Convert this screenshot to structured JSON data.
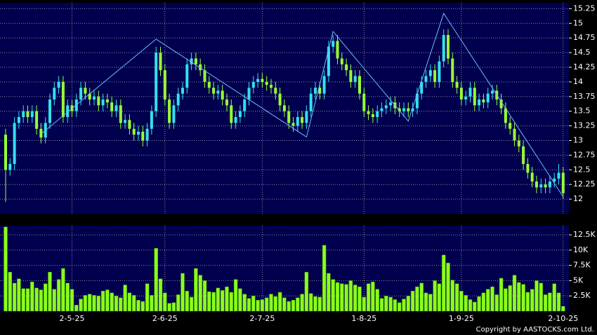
{
  "chart_data": [
    {
      "type": "candlestick",
      "categories": [
        null,
        null,
        null,
        null,
        null,
        null,
        null,
        null,
        null,
        null,
        null,
        null,
        null,
        null,
        null,
        "2-5-25",
        null,
        null,
        null,
        null,
        null,
        null,
        null,
        null,
        null,
        null,
        null,
        null,
        null,
        null,
        null,
        null,
        null,
        null,
        null,
        null,
        "2-6-25",
        null,
        null,
        null,
        null,
        null,
        null,
        null,
        null,
        null,
        null,
        null,
        null,
        null,
        null,
        null,
        null,
        null,
        null,
        null,
        null,
        null,
        "2-7-25",
        null,
        null,
        null,
        null,
        null,
        null,
        null,
        null,
        null,
        null,
        null,
        null,
        null,
        null,
        null,
        null,
        null,
        null,
        null,
        null,
        null,
        null,
        "1-8-25",
        null,
        null,
        null,
        null,
        null,
        null,
        null,
        null,
        null,
        null,
        null,
        null,
        null,
        null,
        null,
        null,
        null,
        null,
        null,
        null,
        null,
        "1-9-25",
        null,
        null,
        null,
        null,
        null,
        null,
        null,
        null,
        null,
        null,
        null,
        null,
        null,
        null,
        null,
        null,
        null,
        null,
        null,
        null,
        null,
        null,
        "2-10-25"
      ],
      "open": [
        13.1,
        12.5,
        12.6,
        13.3,
        13.4,
        13.5,
        13.4,
        13.5,
        13.2,
        13.05,
        13.3,
        13.7,
        13.9,
        14.0,
        13.4,
        13.6,
        13.5,
        13.7,
        13.9,
        13.8,
        13.7,
        13.75,
        13.6,
        13.7,
        13.65,
        13.5,
        13.6,
        13.3,
        13.35,
        13.2,
        13.1,
        13.15,
        13.0,
        13.2,
        13.5,
        14.5,
        14.2,
        13.7,
        13.3,
        13.6,
        13.8,
        13.9,
        14.3,
        14.4,
        14.3,
        14.2,
        14.0,
        13.9,
        13.8,
        13.85,
        13.7,
        13.6,
        13.3,
        13.4,
        13.5,
        13.7,
        13.9,
        14.0,
        14.05,
        14.0,
        13.95,
        13.9,
        13.8,
        13.6,
        13.5,
        13.3,
        13.25,
        13.4,
        13.3,
        13.5,
        13.8,
        13.9,
        13.8,
        14.1,
        14.6,
        14.7,
        14.4,
        14.3,
        14.2,
        14.0,
        14.1,
        13.8,
        13.5,
        13.45,
        13.4,
        13.5,
        13.55,
        13.6,
        13.65,
        13.55,
        13.5,
        13.55,
        13.5,
        13.55,
        13.8,
        14.0,
        14.1,
        14.2,
        14.0,
        14.35,
        14.8,
        14.4,
        14.0,
        13.9,
        13.7,
        13.75,
        13.9,
        13.6,
        13.7,
        13.65,
        13.8,
        13.85,
        13.7,
        13.55,
        13.3,
        13.2,
        13.0,
        12.9,
        12.6,
        12.45,
        12.3,
        12.2,
        12.25,
        12.2,
        12.3,
        12.35,
        12.45
      ],
      "high": [
        13.2,
        12.7,
        13.4,
        13.5,
        13.6,
        13.6,
        13.6,
        13.6,
        13.3,
        13.4,
        13.8,
        14.0,
        14.1,
        14.1,
        13.7,
        13.7,
        13.8,
        14.0,
        14.0,
        13.9,
        13.85,
        13.85,
        13.8,
        13.8,
        13.75,
        13.7,
        13.7,
        13.45,
        13.45,
        13.3,
        13.25,
        13.25,
        13.3,
        13.6,
        14.6,
        14.6,
        14.3,
        13.8,
        13.7,
        13.9,
        14.0,
        14.4,
        14.5,
        14.5,
        14.4,
        14.3,
        14.1,
        14.0,
        13.95,
        13.95,
        13.8,
        13.7,
        13.5,
        13.6,
        13.8,
        14.0,
        14.1,
        14.15,
        14.15,
        14.1,
        14.05,
        14.0,
        13.9,
        13.7,
        13.6,
        13.4,
        13.5,
        13.5,
        13.6,
        13.9,
        14.0,
        14.0,
        14.2,
        14.7,
        14.8,
        14.8,
        14.5,
        14.4,
        14.3,
        14.2,
        14.2,
        13.9,
        13.6,
        13.55,
        13.6,
        13.65,
        13.7,
        13.75,
        13.75,
        13.65,
        13.65,
        13.65,
        13.65,
        13.9,
        14.1,
        14.2,
        14.3,
        14.3,
        14.45,
        14.9,
        14.9,
        14.5,
        14.1,
        14.0,
        13.85,
        14.0,
        14.0,
        13.8,
        13.8,
        13.9,
        13.95,
        13.95,
        13.8,
        13.65,
        13.4,
        13.3,
        13.1,
        13.0,
        12.7,
        12.55,
        12.4,
        12.35,
        12.35,
        12.4,
        12.45,
        12.6,
        12.55
      ],
      "low": [
        11.95,
        12.4,
        12.5,
        13.2,
        13.3,
        13.3,
        13.3,
        13.1,
        12.95,
        12.95,
        13.2,
        13.6,
        13.8,
        13.3,
        13.3,
        13.4,
        13.4,
        13.6,
        13.7,
        13.6,
        13.6,
        13.5,
        13.5,
        13.55,
        13.4,
        13.4,
        13.2,
        13.2,
        13.1,
        13.0,
        13.0,
        12.9,
        12.9,
        13.1,
        13.4,
        14.1,
        13.6,
        13.2,
        13.2,
        13.5,
        13.7,
        13.8,
        14.2,
        14.2,
        14.1,
        13.9,
        13.8,
        13.7,
        13.7,
        13.6,
        13.5,
        13.2,
        13.2,
        13.3,
        13.4,
        13.6,
        13.8,
        13.9,
        13.9,
        13.85,
        13.8,
        13.7,
        13.5,
        13.4,
        13.2,
        13.15,
        13.15,
        13.2,
        13.2,
        13.4,
        13.7,
        13.7,
        13.7,
        14.0,
        14.5,
        14.3,
        14.2,
        14.1,
        13.9,
        13.9,
        13.7,
        13.4,
        13.35,
        13.3,
        13.3,
        13.4,
        13.45,
        13.5,
        13.45,
        13.4,
        13.4,
        13.4,
        13.4,
        13.45,
        13.7,
        13.9,
        14.0,
        13.9,
        13.9,
        14.25,
        14.3,
        13.9,
        13.8,
        13.6,
        13.6,
        13.65,
        13.5,
        13.5,
        13.55,
        13.55,
        13.7,
        13.6,
        13.45,
        13.2,
        13.1,
        12.9,
        12.8,
        12.5,
        12.35,
        12.2,
        12.1,
        12.1,
        12.1,
        12.1,
        12.2,
        12.25,
        12.0
      ],
      "close": [
        12.5,
        12.6,
        13.3,
        13.4,
        13.5,
        13.4,
        13.5,
        13.2,
        13.05,
        13.3,
        13.7,
        13.9,
        14.0,
        13.4,
        13.6,
        13.5,
        13.7,
        13.9,
        13.8,
        13.7,
        13.75,
        13.6,
        13.7,
        13.65,
        13.5,
        13.6,
        13.3,
        13.35,
        13.2,
        13.1,
        13.15,
        13.0,
        13.2,
        13.5,
        14.5,
        14.2,
        13.7,
        13.3,
        13.6,
        13.8,
        13.9,
        14.3,
        14.4,
        14.3,
        14.2,
        14.0,
        13.9,
        13.8,
        13.85,
        13.7,
        13.6,
        13.3,
        13.4,
        13.5,
        13.7,
        13.9,
        14.0,
        14.05,
        14.0,
        13.95,
        13.9,
        13.8,
        13.6,
        13.5,
        13.3,
        13.25,
        13.4,
        13.3,
        13.5,
        13.8,
        13.9,
        13.8,
        14.1,
        14.6,
        14.7,
        14.4,
        14.3,
        14.2,
        14.0,
        14.1,
        13.8,
        13.5,
        13.45,
        13.4,
        13.5,
        13.55,
        13.6,
        13.65,
        13.55,
        13.5,
        13.55,
        13.5,
        13.55,
        13.8,
        14.0,
        14.1,
        14.2,
        14.0,
        14.35,
        14.8,
        14.4,
        14.0,
        13.9,
        13.7,
        13.75,
        13.9,
        13.6,
        13.7,
        13.65,
        13.8,
        13.85,
        13.7,
        13.55,
        13.3,
        13.2,
        13.0,
        12.9,
        12.6,
        12.45,
        12.3,
        12.2,
        12.25,
        12.2,
        12.3,
        12.35,
        12.45,
        12.1
      ],
      "up_color": "#33e0f0",
      "down_color": "#99ff33",
      "zigzag": {
        "color": "#6fb8ff",
        "x": [
          8,
          34,
          68,
          74,
          91,
          99,
          126
        ],
        "values": [
          13.11,
          14.73,
          13.06,
          14.86,
          13.33,
          15.17,
          12.04
        ]
      },
      "ylim": [
        11.75,
        15.35
      ],
      "yticks": [
        12,
        12.25,
        12.5,
        12.75,
        13,
        13.25,
        13.5,
        13.75,
        14,
        14.25,
        14.5,
        14.75,
        15,
        15.25
      ],
      "grid": true
    },
    {
      "type": "bar",
      "values": [
        13800,
        6400,
        4600,
        5300,
        3700,
        3700,
        4800,
        3800,
        3500,
        4500,
        6400,
        3600,
        5200,
        7000,
        4600,
        3600,
        1000,
        2000,
        2600,
        2800,
        2600,
        2500,
        3300,
        3500,
        3000,
        2500,
        2200,
        4300,
        3000,
        2600,
        1800,
        1600,
        4500,
        2600,
        10300,
        5300,
        3000,
        1300,
        1400,
        2700,
        6200,
        3300,
        2300,
        7000,
        5900,
        5000,
        3200,
        3100,
        3800,
        3400,
        4000,
        3100,
        5200,
        3700,
        2800,
        2100,
        2500,
        1800,
        1900,
        2200,
        2800,
        2400,
        3100,
        2200,
        1600,
        1800,
        2200,
        2800,
        6400,
        2900,
        2400,
        2300,
        10800,
        6200,
        5200,
        4700,
        4500,
        4400,
        5000,
        4300,
        4000,
        2300,
        4500,
        4800,
        3600,
        2100,
        2500,
        2300,
        1900,
        1400,
        2000,
        2500,
        3300,
        4000,
        4600,
        3000,
        2800,
        5000,
        4500,
        9200,
        7900,
        5100,
        4500,
        3300,
        2600,
        1900,
        1500,
        2400,
        3000,
        3600,
        4000,
        2700,
        5400,
        3700,
        4200,
        5900,
        4700,
        4400,
        3100,
        3600,
        5000,
        4600,
        2700,
        3000,
        4500,
        3000,
        800
      ],
      "color": "#8cff1a",
      "ylim": [
        0,
        14000
      ],
      "yticks": [
        {
          "value": 2500,
          "label": "2.5K"
        },
        {
          "value": 5000,
          "label": "5K"
        },
        {
          "value": 7500,
          "label": "7.5K"
        },
        {
          "value": 10000,
          "label": "10K"
        },
        {
          "value": 12500,
          "label": "12.5K"
        }
      ],
      "grid": true,
      "annotation": "Copyright by AASTOCKS.com Ltd."
    }
  ]
}
